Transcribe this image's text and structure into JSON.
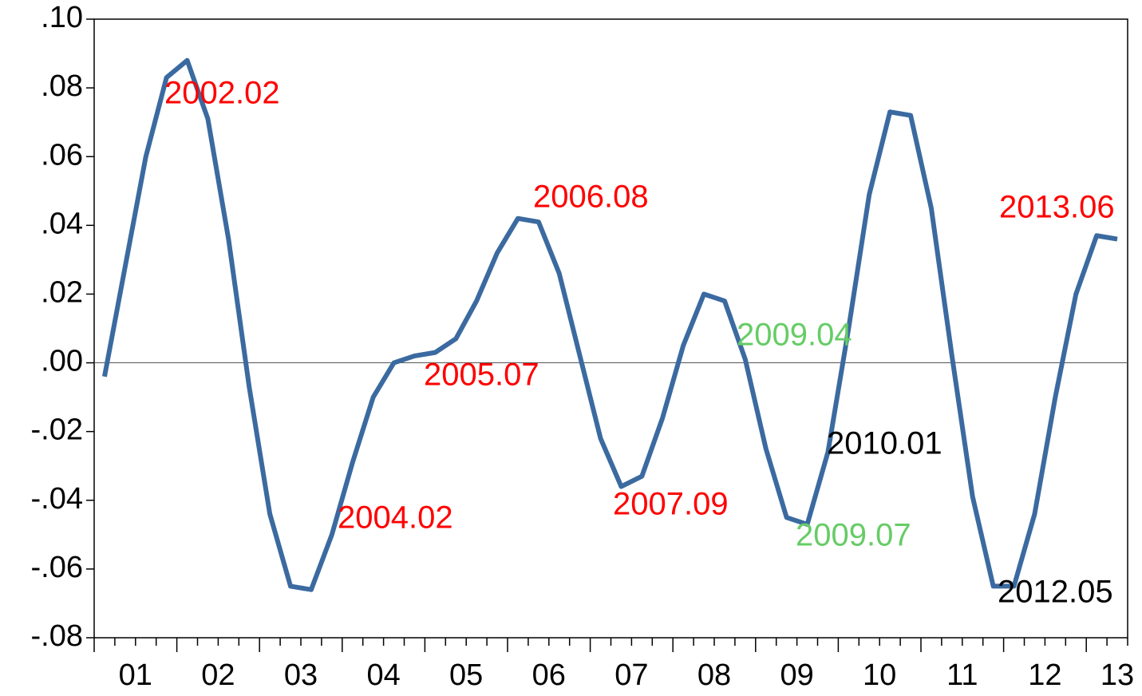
{
  "chart_data": {
    "type": "line",
    "x": [
      2001.125,
      2001.375,
      2001.625,
      2001.875,
      2002.125,
      2002.375,
      2002.625,
      2002.875,
      2003.125,
      2003.375,
      2003.625,
      2003.875,
      2004.125,
      2004.375,
      2004.625,
      2004.875,
      2005.125,
      2005.375,
      2005.625,
      2005.875,
      2006.125,
      2006.375,
      2006.625,
      2006.875,
      2007.125,
      2007.375,
      2007.625,
      2007.875,
      2008.125,
      2008.375,
      2008.625,
      2008.875,
      2009.125,
      2009.375,
      2009.625,
      2009.875,
      2010.125,
      2010.375,
      2010.625,
      2010.875,
      2011.125,
      2011.375,
      2011.625,
      2011.875,
      2012.125,
      2012.375,
      2012.625,
      2012.875,
      2013.125,
      2013.375
    ],
    "series": [
      {
        "color": "#3b6aa0",
        "values": [
          -0.004,
          0.028,
          0.06,
          0.083,
          0.088,
          0.071,
          0.036,
          -0.007,
          -0.044,
          -0.065,
          -0.066,
          -0.05,
          -0.029,
          -0.01,
          0.0,
          0.002,
          0.003,
          0.007,
          0.018,
          0.032,
          0.042,
          0.041,
          0.026,
          0.002,
          -0.022,
          -0.036,
          -0.033,
          -0.016,
          0.005,
          0.02,
          0.018,
          0.001,
          -0.025,
          -0.045,
          -0.047,
          -0.026,
          0.01,
          0.049,
          0.073,
          0.072,
          0.045,
          0.002,
          -0.039,
          -0.065,
          -0.065,
          -0.044,
          -0.01,
          0.02,
          0.037,
          0.036
        ]
      }
    ],
    "xlim": [
      2001,
      2013.5
    ],
    "xticks": [
      {
        "value": 2001.5,
        "label": "01"
      },
      {
        "value": 2002.5,
        "label": "02"
      },
      {
        "value": 2003.5,
        "label": "03"
      },
      {
        "value": 2004.5,
        "label": "04"
      },
      {
        "value": 2005.5,
        "label": "05"
      },
      {
        "value": 2006.5,
        "label": "06"
      },
      {
        "value": 2007.5,
        "label": "07"
      },
      {
        "value": 2008.5,
        "label": "08"
      },
      {
        "value": 2009.5,
        "label": "09"
      },
      {
        "value": 2010.5,
        "label": "10"
      },
      {
        "value": 2011.5,
        "label": "11"
      },
      {
        "value": 2012.5,
        "label": "12"
      },
      {
        "value": 2013.375,
        "label": "13"
      }
    ],
    "ylim": [
      -0.08,
      0.1
    ],
    "yticks": [
      {
        "value": 0.1,
        "label": ".10"
      },
      {
        "value": 0.08,
        "label": ".08"
      },
      {
        "value": 0.06,
        "label": ".06"
      },
      {
        "value": 0.04,
        "label": ".04"
      },
      {
        "value": 0.02,
        "label": ".02"
      },
      {
        "value": 0.0,
        "label": ".00"
      },
      {
        "value": -0.02,
        "label": "-.02"
      },
      {
        "value": -0.04,
        "label": "-.04"
      },
      {
        "value": -0.06,
        "label": "-.06"
      },
      {
        "value": -0.08,
        "label": "-.08"
      }
    ],
    "zero_line": true,
    "annotations": [
      {
        "text": "2002.02",
        "color": "#ff0000"
      },
      {
        "text": "2006.08",
        "color": "#ff0000"
      },
      {
        "text": "2013.06",
        "color": "#ff0000"
      },
      {
        "text": "2009.04",
        "color": "#66cc66"
      },
      {
        "text": "2005.07",
        "color": "#ff0000"
      },
      {
        "text": "2010.01",
        "color": "#000000"
      },
      {
        "text": "2007.09",
        "color": "#ff0000"
      },
      {
        "text": "2004.02",
        "color": "#ff0000"
      },
      {
        "text": "2009.07",
        "color": "#66cc66"
      },
      {
        "text": "2012.05",
        "color": "#000000"
      }
    ]
  }
}
